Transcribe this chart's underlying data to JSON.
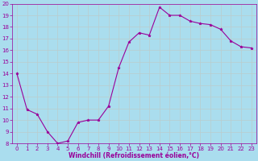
{
  "hours": [
    0,
    1,
    2,
    3,
    4,
    5,
    6,
    7,
    8,
    9,
    10,
    11,
    12,
    13,
    14,
    15,
    16,
    17,
    18,
    19,
    20,
    21,
    22,
    23
  ],
  "values": [
    14.0,
    10.9,
    10.5,
    9.0,
    8.0,
    8.2,
    9.8,
    10.0,
    10.0,
    11.2,
    14.5,
    16.7,
    17.5,
    17.3,
    19.7,
    19.0,
    19.0,
    18.5,
    18.3,
    18.2,
    17.8,
    16.8,
    16.3,
    16.2
  ],
  "ylim": [
    8,
    20
  ],
  "xlim": [
    -0.5,
    23.5
  ],
  "yticks": [
    8,
    9,
    10,
    11,
    12,
    13,
    14,
    15,
    16,
    17,
    18,
    19,
    20
  ],
  "xticks": [
    0,
    1,
    2,
    3,
    4,
    5,
    6,
    7,
    8,
    9,
    10,
    11,
    12,
    13,
    14,
    15,
    16,
    17,
    18,
    19,
    20,
    21,
    22,
    23
  ],
  "xlabel": "Windchill (Refroidissement éolien,°C)",
  "line_color": "#990099",
  "marker": "*",
  "bg_color": "#aaddee",
  "grid_color": "#bbcccc",
  "title_color": "#990099",
  "axis_color": "#990099",
  "tick_color": "#990099",
  "xlabel_fontsize": 5.5,
  "tick_fontsize": 5.0
}
